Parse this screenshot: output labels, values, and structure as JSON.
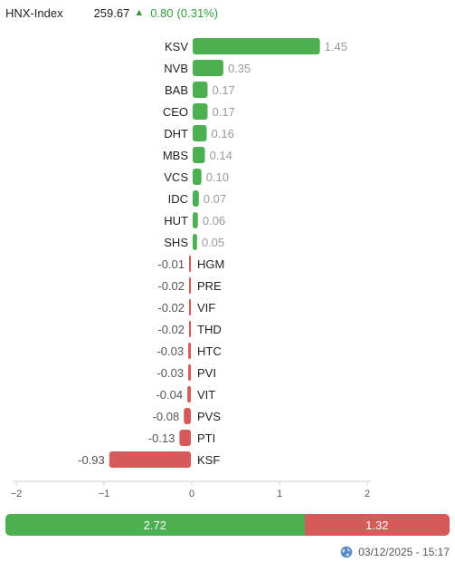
{
  "header": {
    "index_name": "HNX-Index",
    "index_value": "259.67",
    "change": "0.80",
    "change_pct": "(0.31%)",
    "trend_icon": "up-triangle-icon"
  },
  "colors": {
    "positive": "#4caf50",
    "negative": "#d75a5a",
    "label": "#222222",
    "value_positive": "#999999",
    "value_negative": "#555555",
    "axis": "#cccccc",
    "header_change": "#2e9d3a",
    "globe_icon": "#5b8bc5"
  },
  "chart_data": {
    "type": "bar",
    "orientation": "horizontal",
    "categories": [
      "KSV",
      "NVB",
      "BAB",
      "CEO",
      "DHT",
      "MBS",
      "VCS",
      "IDC",
      "HUT",
      "SHS",
      "HGM",
      "PRE",
      "VIF",
      "THD",
      "HTC",
      "PVI",
      "VIT",
      "PVS",
      "PTI",
      "KSF"
    ],
    "values": [
      1.45,
      0.35,
      0.17,
      0.17,
      0.16,
      0.14,
      0.1,
      0.07,
      0.06,
      0.05,
      -0.01,
      -0.02,
      -0.02,
      -0.02,
      -0.03,
      -0.03,
      -0.04,
      -0.08,
      -0.13,
      -0.93
    ],
    "value_labels": [
      "1.45",
      "0.35",
      "0.17",
      "0.17",
      "0.16",
      "0.14",
      "0.10",
      "0.07",
      "0.06",
      "0.05",
      "-0.01",
      "-0.02",
      "-0.02",
      "-0.02",
      "-0.03",
      "-0.03",
      "-0.04",
      "-0.08",
      "-0.13",
      "-0.93"
    ],
    "xlim": [
      -2,
      2
    ],
    "xticks": [
      -2,
      -1,
      0,
      1,
      2
    ],
    "xtick_labels": [
      "−2",
      "−1",
      "0",
      "1",
      "2"
    ],
    "grid": false,
    "title": "",
    "xlabel": "",
    "ylabel": ""
  },
  "summary": {
    "positive_total": 2.72,
    "negative_total": 1.32,
    "positive_label": "2.72",
    "negative_label": "1.32"
  },
  "footer": {
    "globe_icon": "globe-icon",
    "timestamp": "03/12/2025 - 15:17"
  }
}
